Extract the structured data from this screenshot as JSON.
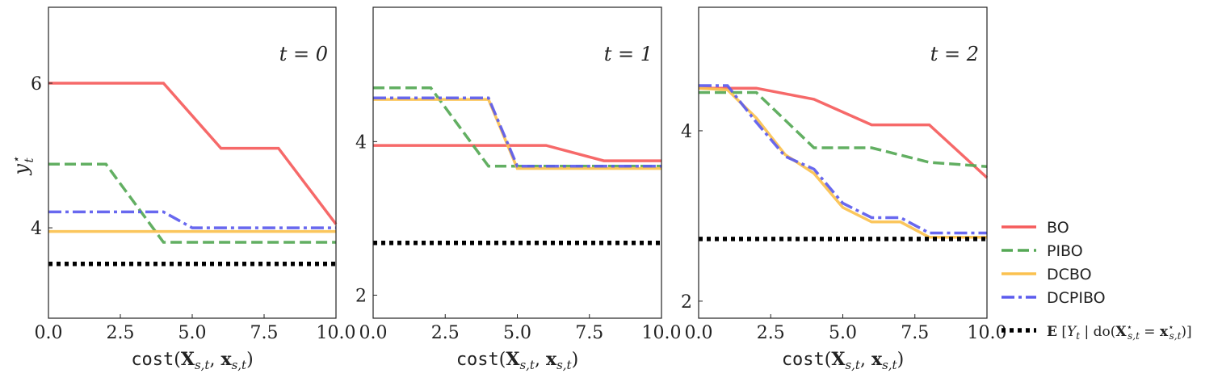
{
  "chart_data": [
    {
      "type": "line",
      "panel": "t=0",
      "ylabel": "y_t*",
      "xlabel_func": "cost",
      "xlabel_args": "(X s,t , x s,t )",
      "annotation": "t = 0",
      "xlim": [
        0,
        10
      ],
      "ylim": [
        2.75,
        7.05
      ],
      "xticks": [
        "0.0",
        "2.5",
        "5.0",
        "7.5",
        "10.0"
      ],
      "yticks": [
        4,
        6
      ],
      "series": [
        {
          "name": "BO",
          "style": "solid",
          "color": "#f55c5c",
          "points": [
            [
              0,
              6.0
            ],
            [
              4,
              6.0
            ],
            [
              6,
              5.1
            ],
            [
              8,
              5.1
            ],
            [
              10,
              4.05
            ]
          ]
        },
        {
          "name": "PIBO",
          "style": "dashed",
          "color": "#55a855",
          "points": [
            [
              0,
              4.88
            ],
            [
              2,
              4.88
            ],
            [
              4,
              3.8
            ],
            [
              10,
              3.8
            ]
          ]
        },
        {
          "name": "DCBO",
          "style": "solid",
          "color": "#fbc14f",
          "points": [
            [
              0,
              3.95
            ],
            [
              10,
              3.95
            ]
          ]
        },
        {
          "name": "DCPIBO",
          "style": "dashdot",
          "color": "#5b5bee",
          "points": [
            [
              0,
              4.22
            ],
            [
              4,
              4.22
            ],
            [
              5,
              4.0
            ],
            [
              10,
              4.0
            ]
          ]
        },
        {
          "name": "E[Y_t | do(X*_s,t = x*_s,t)]",
          "style": "dotted",
          "color": "#000000",
          "points": [
            [
              0,
              3.5
            ],
            [
              10,
              3.5
            ]
          ]
        }
      ]
    },
    {
      "type": "line",
      "panel": "t=1",
      "ylabel": "",
      "xlabel_func": "cost",
      "xlabel_args": "(X s,t , x s,t )",
      "annotation": "t = 1",
      "xlim": [
        0,
        10
      ],
      "ylim": [
        1.7,
        5.75
      ],
      "xticks": [
        "0.0",
        "2.5",
        "5.0",
        "7.5",
        "10.0"
      ],
      "yticks": [
        2,
        4
      ],
      "series": [
        {
          "name": "BO",
          "style": "solid",
          "color": "#f55c5c",
          "points": [
            [
              0,
              3.95
            ],
            [
              6,
              3.95
            ],
            [
              8,
              3.75
            ],
            [
              10,
              3.75
            ]
          ]
        },
        {
          "name": "PIBO",
          "style": "dashed",
          "color": "#55a855",
          "points": [
            [
              0,
              4.7
            ],
            [
              2,
              4.7
            ],
            [
              4,
              3.68
            ],
            [
              10,
              3.68
            ]
          ]
        },
        {
          "name": "DCBO",
          "style": "solid",
          "color": "#fbc14f",
          "points": [
            [
              0,
              4.55
            ],
            [
              4,
              4.55
            ],
            [
              5,
              3.65
            ],
            [
              10,
              3.65
            ]
          ]
        },
        {
          "name": "DCPIBO",
          "style": "dashdot",
          "color": "#5b5bee",
          "points": [
            [
              0,
              4.57
            ],
            [
              4,
              4.57
            ],
            [
              5,
              3.68
            ],
            [
              10,
              3.68
            ]
          ]
        },
        {
          "name": "E[Y_t | do(X*_s,t = x*_s,t)]",
          "style": "dotted",
          "color": "#000000",
          "points": [
            [
              0,
              2.68
            ],
            [
              10,
              2.68
            ]
          ]
        }
      ]
    },
    {
      "type": "line",
      "panel": "t=2",
      "ylabel": "",
      "xlabel_func": "cost",
      "xlabel_args": "(X s,t , x s,t )",
      "annotation": "t = 2",
      "xlim": [
        0,
        10
      ],
      "ylim": [
        1.8,
        5.45
      ],
      "xticks": [
        "0.0",
        "2.5",
        "5.0",
        "7.5",
        "10.0"
      ],
      "yticks": [
        2,
        4
      ],
      "series": [
        {
          "name": "BO",
          "style": "solid",
          "color": "#f55c5c",
          "points": [
            [
              0,
              4.5
            ],
            [
              2,
              4.5
            ],
            [
              4,
              4.37
            ],
            [
              6,
              4.07
            ],
            [
              8,
              4.07
            ],
            [
              10,
              3.45
            ]
          ]
        },
        {
          "name": "PIBO",
          "style": "dashed",
          "color": "#55a855",
          "points": [
            [
              0,
              4.45
            ],
            [
              2,
              4.45
            ],
            [
              4,
              3.8
            ],
            [
              6,
              3.8
            ],
            [
              8,
              3.63
            ],
            [
              10,
              3.58
            ]
          ]
        },
        {
          "name": "DCBO",
          "style": "solid",
          "color": "#fbc14f",
          "points": [
            [
              0,
              4.5
            ],
            [
              1,
              4.48
            ],
            [
              2,
              4.15
            ],
            [
              3,
              3.72
            ],
            [
              4,
              3.5
            ],
            [
              5,
              3.1
            ],
            [
              6,
              2.93
            ],
            [
              7,
              2.93
            ],
            [
              8,
              2.75
            ],
            [
              10,
              2.75
            ]
          ]
        },
        {
          "name": "DCPIBO",
          "style": "dashdot",
          "color": "#5b5bee",
          "points": [
            [
              0,
              4.53
            ],
            [
              1,
              4.53
            ],
            [
              2,
              4.1
            ],
            [
              3,
              3.7
            ],
            [
              4,
              3.55
            ],
            [
              5,
              3.15
            ],
            [
              6,
              2.98
            ],
            [
              7,
              2.98
            ],
            [
              8,
              2.8
            ],
            [
              10,
              2.8
            ]
          ]
        },
        {
          "name": "E[Y_t | do(X*_s,t = x*_s,t)]",
          "style": "dotted",
          "color": "#000000",
          "points": [
            [
              0,
              2.73
            ],
            [
              10,
              2.73
            ]
          ]
        }
      ]
    }
  ],
  "legend": {
    "placement": "right",
    "items": [
      {
        "label": "BO",
        "style": "solid",
        "color": "#f55c5c"
      },
      {
        "label": "PIBO",
        "style": "dashed",
        "color": "#55a855"
      },
      {
        "label": "DCBO",
        "style": "solid",
        "color": "#fbc14f"
      },
      {
        "label": "DCPIBO",
        "style": "dashdot",
        "color": "#5b5bee"
      },
      {
        "label": "E [Y t | do(X* s,t = x* s,t )]",
        "style": "dotted",
        "color": "#000000"
      }
    ]
  }
}
